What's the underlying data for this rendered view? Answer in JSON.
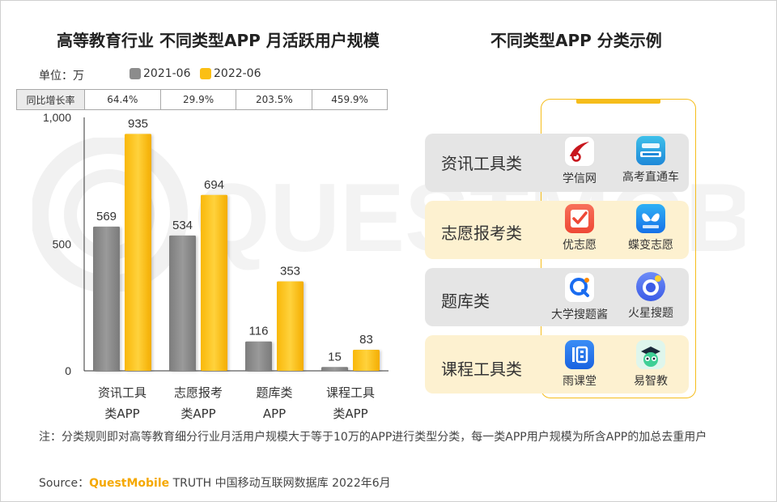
{
  "left_title": "高等教育行业 不同类型APP 月活跃用户规模",
  "right_title": "不同类型APP 分类示例",
  "unit_label": "单位：万",
  "watermark_text": "QUESTMOBILE",
  "yoy": {
    "label": "同比增长率",
    "values": [
      "64.4%",
      "29.9%",
      "203.5%",
      "459.9%"
    ]
  },
  "chart_data": {
    "type": "bar",
    "categories": [
      [
        "资讯工具",
        "类APP"
      ],
      [
        "志愿报考",
        "类APP"
      ],
      [
        "题库类",
        "APP"
      ],
      [
        "课程工具",
        "类APP"
      ]
    ],
    "series": [
      {
        "name": "2021-06",
        "values": [
          569,
          534,
          116,
          15
        ],
        "color": "#8c8c8c"
      },
      {
        "name": "2022-06",
        "values": [
          935,
          694,
          353,
          83
        ],
        "color": "#fbbf14"
      }
    ],
    "yticks": [
      "1,000",
      "500",
      "0"
    ],
    "ylim": [
      0,
      1000
    ],
    "grid": false,
    "legend": "top"
  },
  "categories_examples": [
    {
      "label": "资讯工具类",
      "bg": "#e5e5e5",
      "apps": [
        {
          "name": "学信网",
          "icon": "xuexin-icon"
        },
        {
          "name": "高考直通车",
          "icon": "gaokao-ztc-icon"
        }
      ]
    },
    {
      "label": "志愿报考类",
      "bg": "#fdf1d0",
      "apps": [
        {
          "name": "优志愿",
          "icon": "youzhiyuan-icon"
        },
        {
          "name": "蝶变志愿",
          "icon": "diebian-icon"
        }
      ]
    },
    {
      "label": "题库类",
      "bg": "#e5e5e5",
      "apps": [
        {
          "name": "大学搜题酱",
          "icon": "soutijiang-icon"
        },
        {
          "name": "火星搜题",
          "icon": "huoxing-icon"
        }
      ]
    },
    {
      "label": "课程工具类",
      "bg": "#fdf1d0",
      "apps": [
        {
          "name": "雨课堂",
          "icon": "yuketang-icon"
        },
        {
          "name": "易智教",
          "icon": "yizhijiao-icon"
        }
      ]
    }
  ],
  "note": "注：分类规则即对高等教育细分行业月活用户规模大于等于10万的APP进行类型分类，每一类APP用户规模为所含APP的加总去重用户",
  "source": {
    "prefix": "Source：",
    "brand": "QuestMobile",
    "rest": " TRUTH 中国移动互联网数据库 2022年6月"
  }
}
